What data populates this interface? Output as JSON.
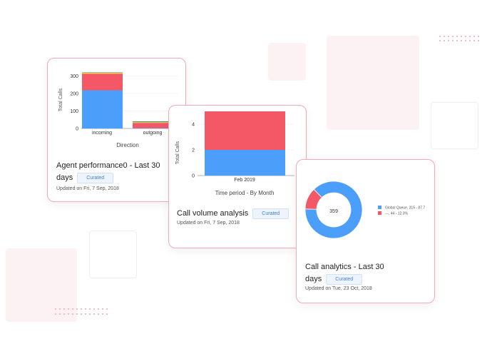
{
  "colors": {
    "blue": "#4b9ef9",
    "red": "#f45766",
    "yellow": "#f0d53f",
    "green": "#2d7a4a",
    "card_border": "#f3a9b6",
    "badge_text": "#3f7fd8"
  },
  "cards": [
    {
      "title_line1": "Agent performance0 - Last 30",
      "title_line2": "days",
      "badge": "Curated",
      "updated": "Updated on Fri, 7 Sep, 2018"
    },
    {
      "title_line1": "Call volume analysis",
      "badge": "Curated",
      "updated": "Updated on Fri, 7 Sep, 2018"
    },
    {
      "title_line1": "Call analytics - Last 30",
      "title_line2": "days",
      "badge": "Curated",
      "updated": "Updated on Tue, 23 Oct, 2018"
    }
  ],
  "chart_data": [
    {
      "type": "bar",
      "stacked": true,
      "xlabel": "Direction",
      "ylabel": "Total Calls",
      "categories": [
        "incoming",
        "outgoing"
      ],
      "yticks": [
        "0",
        "100",
        "200",
        "300"
      ],
      "ylim": [
        0,
        330
      ],
      "series": [
        {
          "color": "#4b9ef9",
          "values": [
            218,
            2
          ]
        },
        {
          "color": "#f45766",
          "values": [
            95,
            30
          ]
        },
        {
          "color": "#f0d53f",
          "values": [
            5,
            4
          ]
        },
        {
          "color": "#2d7a4a",
          "values": [
            2,
            4
          ]
        }
      ]
    },
    {
      "type": "bar",
      "stacked": true,
      "xlabel": "Time period - By Month",
      "ylabel": "Total Calls",
      "categories": [
        "Feb 2019"
      ],
      "yticks": [
        "0",
        "2",
        "4"
      ],
      "ylim": [
        0,
        5
      ],
      "series": [
        {
          "color": "#4b9ef9",
          "values": [
            2
          ]
        },
        {
          "color": "#f45766",
          "values": [
            3
          ]
        }
      ]
    },
    {
      "type": "pie",
      "center_label": "359",
      "legend": [
        "Global Queue, 315 - 87.7",
        "---, 44 - 12.3%"
      ],
      "legend_position": "right",
      "slices": [
        {
          "value": 315,
          "color": "#4b9ef9"
        },
        {
          "value": 44,
          "color": "#f45766"
        }
      ]
    }
  ]
}
